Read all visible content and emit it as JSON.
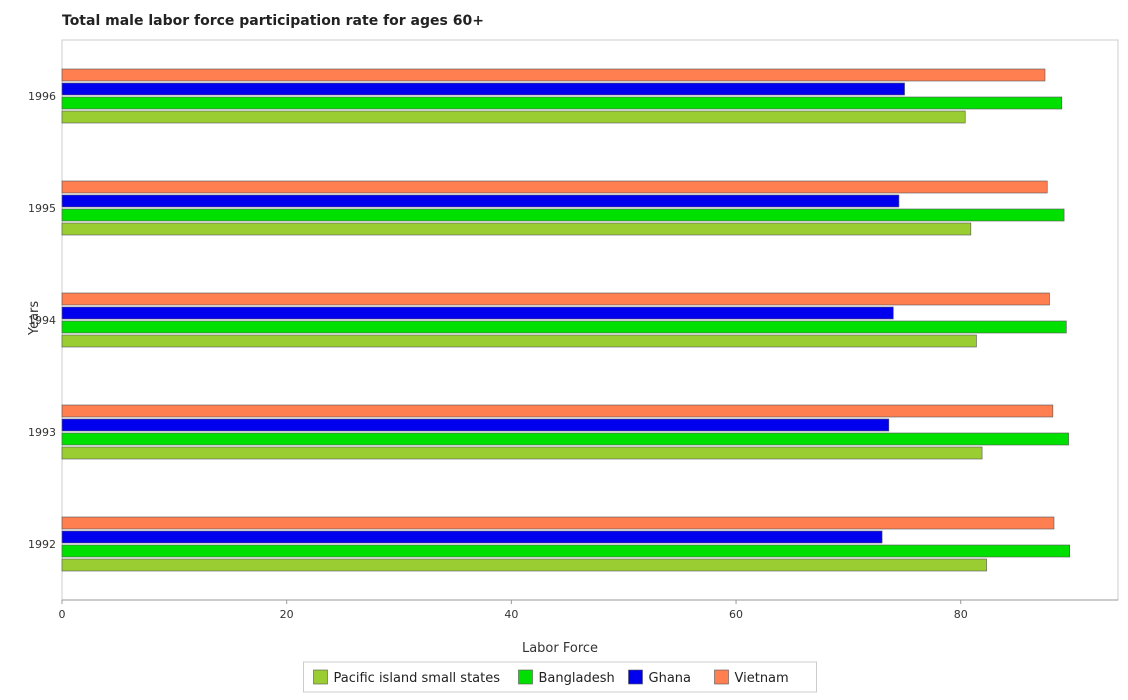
{
  "chart_data": {
    "type": "bar",
    "orientation": "horizontal",
    "title": "Total male labor force participation rate for ages 60+",
    "xlabel": "Labor Force",
    "ylabel": "Years",
    "categories": [
      "1992",
      "1993",
      "1994",
      "1995",
      "1996"
    ],
    "xlim": [
      0,
      94
    ],
    "xticks": [
      0,
      20,
      40,
      60,
      80
    ],
    "grid": false,
    "legend_position": "bottom",
    "series": [
      {
        "name": "Pacific island small states",
        "color": "#9acd32",
        "values": [
          82.3,
          81.9,
          81.4,
          80.9,
          80.4
        ]
      },
      {
        "name": "Bangladesh",
        "color": "#00e000",
        "values": [
          89.7,
          89.6,
          89.4,
          89.2,
          89.0
        ]
      },
      {
        "name": "Ghana",
        "color": "#0000ee",
        "values": [
          73.0,
          73.6,
          74.0,
          74.5,
          75.0
        ]
      },
      {
        "name": "Vietnam",
        "color": "#ff7f50",
        "values": [
          88.3,
          88.2,
          87.9,
          87.7,
          87.5
        ]
      }
    ]
  }
}
